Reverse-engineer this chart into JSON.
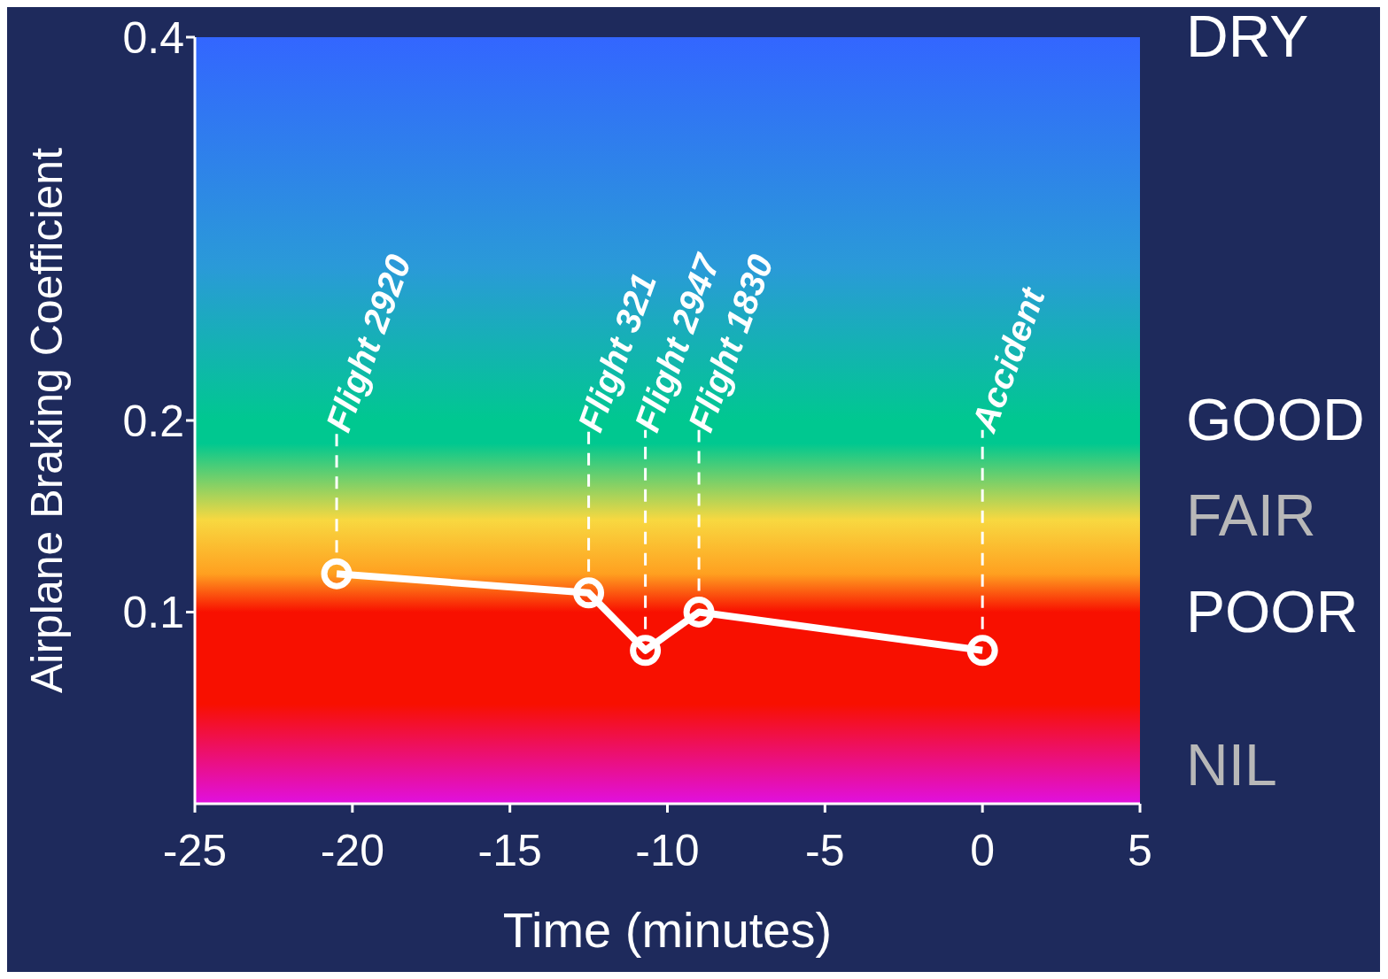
{
  "chart_data": {
    "type": "line",
    "xlabel": "Time (minutes)",
    "ylabel": "Airplane Braking Coefficient",
    "x": [
      -20.5,
      -12.5,
      -10.7,
      -9,
      0
    ],
    "series": [
      {
        "color": "#ffffff",
        "values": [
          0.12,
          0.11,
          0.08,
          0.1,
          0.08
        ]
      }
    ],
    "xlim": [
      -25,
      5
    ],
    "xticks": [
      -25,
      -20,
      -15,
      -10,
      -5,
      0,
      5
    ],
    "ylim": [
      0,
      0.4
    ],
    "yticks": [
      0.1,
      0.2,
      0.4
    ],
    "grid": false,
    "legend": false,
    "marker": "circle",
    "line_style": "solid",
    "annotations": [
      "Flight 2920",
      "Flight 321",
      "Flight 2947",
      "Flight 1830",
      "Accident",
      "DRY",
      "GOOD",
      "FAIR",
      "POOR",
      "NIL"
    ]
  }
}
